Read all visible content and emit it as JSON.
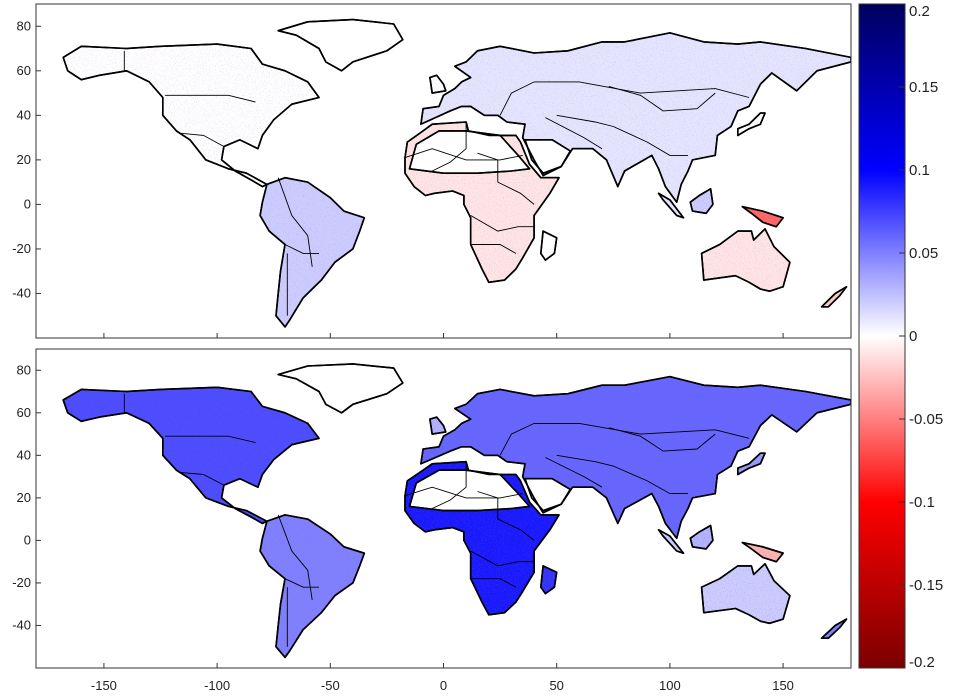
{
  "figure": {
    "panels": [
      {
        "id": "top",
        "land_fill": "#f4eaf0",
        "speckle_bias": 0.0
      },
      {
        "id": "bottom",
        "land_fill": "#9aa6e6",
        "speckle_bias": 0.08
      }
    ],
    "x_axis": {
      "min": -180,
      "max": 180,
      "ticks": [
        -150,
        -100,
        -50,
        0,
        50,
        100,
        150
      ],
      "tick_labels": [
        "-150",
        "-100",
        "-50",
        "0",
        "50",
        "100",
        "150"
      ]
    },
    "y_axis": {
      "min": -60,
      "max": 90,
      "ticks": [
        80,
        60,
        40,
        20,
        0,
        -20,
        -40
      ],
      "tick_labels": [
        "80",
        "60",
        "40",
        "20",
        "0",
        "-20",
        "-40"
      ]
    }
  },
  "colorbar": {
    "min": -0.2,
    "max": 0.2,
    "ticks": [
      0.2,
      0.15,
      0.1,
      0.05,
      0,
      -0.05,
      -0.1,
      -0.15,
      -0.2
    ],
    "tick_labels": [
      "0.2",
      "0.15",
      "0.1",
      "0.05",
      "0",
      "-0.05",
      "-0.1",
      "-0.15",
      "-0.2"
    ],
    "colors": [
      "#7a0000",
      "#ff0000",
      "#ffffff",
      "#0000ff",
      "#00005e"
    ]
  },
  "regions": [
    {
      "name": "north-america",
      "lonlat": [
        [
          -168,
          66
        ],
        [
          -160,
          71
        ],
        [
          -140,
          70
        ],
        [
          -125,
          71
        ],
        [
          -100,
          72
        ],
        [
          -85,
          70
        ],
        [
          -80,
          63
        ],
        [
          -70,
          60
        ],
        [
          -60,
          55
        ],
        [
          -55,
          48
        ],
        [
          -67,
          45
        ],
        [
          -75,
          38
        ],
        [
          -80,
          31
        ],
        [
          -82,
          25
        ],
        [
          -90,
          29
        ],
        [
          -97,
          26
        ],
        [
          -98,
          20
        ],
        [
          -92,
          15
        ],
        [
          -85,
          11
        ],
        [
          -80,
          8
        ],
        [
          -78,
          9
        ],
        [
          -87,
          14
        ],
        [
          -95,
          16
        ],
        [
          -105,
          20
        ],
        [
          -112,
          29
        ],
        [
          -118,
          33
        ],
        [
          -124,
          40
        ],
        [
          -124,
          48
        ],
        [
          -130,
          55
        ],
        [
          -140,
          60
        ],
        [
          -152,
          58
        ],
        [
          -160,
          56
        ],
        [
          -166,
          60
        ]
      ],
      "top": 0.0,
      "bottom": 0.07
    },
    {
      "name": "greenland",
      "lonlat": [
        [
          -73,
          78
        ],
        [
          -60,
          82
        ],
        [
          -40,
          83
        ],
        [
          -22,
          81
        ],
        [
          -18,
          74
        ],
        [
          -25,
          69
        ],
        [
          -40,
          64
        ],
        [
          -45,
          60
        ],
        [
          -52,
          64
        ],
        [
          -55,
          70
        ],
        [
          -65,
          76
        ]
      ],
      "top": null,
      "bottom": null
    },
    {
      "name": "south-america",
      "lonlat": [
        [
          -78,
          9
        ],
        [
          -70,
          12
        ],
        [
          -60,
          10
        ],
        [
          -50,
          3
        ],
        [
          -44,
          -3
        ],
        [
          -35,
          -6
        ],
        [
          -37,
          -12
        ],
        [
          -40,
          -20
        ],
        [
          -48,
          -26
        ],
        [
          -54,
          -34
        ],
        [
          -58,
          -38
        ],
        [
          -62,
          -42
        ],
        [
          -65,
          -47
        ],
        [
          -68,
          -52
        ],
        [
          -70,
          -55
        ],
        [
          -74,
          -50
        ],
        [
          -73,
          -40
        ],
        [
          -72,
          -30
        ],
        [
          -70,
          -18
        ],
        [
          -77,
          -12
        ],
        [
          -81,
          -5
        ],
        [
          -80,
          1
        ]
      ],
      "top": 0.02,
      "bottom": 0.05
    },
    {
      "name": "europe-asia",
      "lonlat": [
        [
          -10,
          36
        ],
        [
          -9,
          43
        ],
        [
          -2,
          44
        ],
        [
          0,
          49
        ],
        [
          5,
          52
        ],
        [
          8,
          55
        ],
        [
          12,
          57
        ],
        [
          5,
          62
        ],
        [
          10,
          64
        ],
        [
          15,
          69
        ],
        [
          25,
          71
        ],
        [
          40,
          68
        ],
        [
          55,
          69
        ],
        [
          70,
          73
        ],
        [
          80,
          73
        ],
        [
          100,
          77
        ],
        [
          115,
          73
        ],
        [
          130,
          72
        ],
        [
          140,
          73
        ],
        [
          160,
          70
        ],
        [
          180,
          66
        ],
        [
          180,
          64
        ],
        [
          165,
          60
        ],
        [
          160,
          55
        ],
        [
          156,
          51
        ],
        [
          145,
          59
        ],
        [
          140,
          54
        ],
        [
          135,
          44
        ],
        [
          130,
          42
        ],
        [
          127,
          35
        ],
        [
          121,
          31
        ],
        [
          120,
          22
        ],
        [
          110,
          20
        ],
        [
          108,
          15
        ],
        [
          105,
          9
        ],
        [
          103,
          1
        ],
        [
          98,
          8
        ],
        [
          95,
          16
        ],
        [
          92,
          22
        ],
        [
          80,
          15
        ],
        [
          77,
          8
        ],
        [
          72,
          20
        ],
        [
          66,
          25
        ],
        [
          57,
          25
        ],
        [
          52,
          17
        ],
        [
          44,
          13
        ],
        [
          40,
          20
        ],
        [
          35,
          30
        ],
        [
          36,
          36
        ],
        [
          28,
          37
        ],
        [
          24,
          40
        ],
        [
          18,
          40
        ],
        [
          12,
          44
        ],
        [
          8,
          44
        ],
        [
          3,
          42
        ]
      ],
      "top": 0.01,
      "bottom": 0.06
    },
    {
      "name": "africa",
      "lonlat": [
        [
          -17,
          21
        ],
        [
          -16,
          28
        ],
        [
          -9,
          33
        ],
        [
          -5,
          36
        ],
        [
          10,
          37
        ],
        [
          11,
          33
        ],
        [
          20,
          31
        ],
        [
          32,
          31
        ],
        [
          34,
          28
        ],
        [
          38,
          18
        ],
        [
          43,
          12
        ],
        [
          51,
          12
        ],
        [
          47,
          5
        ],
        [
          40,
          -5
        ],
        [
          40,
          -15
        ],
        [
          35,
          -24
        ],
        [
          32,
          -29
        ],
        [
          27,
          -34
        ],
        [
          20,
          -35
        ],
        [
          17,
          -29
        ],
        [
          12,
          -18
        ],
        [
          12,
          -6
        ],
        [
          9,
          0
        ],
        [
          9,
          4
        ],
        [
          4,
          6
        ],
        [
          -4,
          5
        ],
        [
          -8,
          4
        ],
        [
          -13,
          8
        ],
        [
          -17,
          14
        ]
      ],
      "top": -0.01,
      "bottom": 0.09
    },
    {
      "name": "madagascar",
      "lonlat": [
        [
          44,
          -12
        ],
        [
          50,
          -15
        ],
        [
          49,
          -22
        ],
        [
          45,
          -25
        ],
        [
          43,
          -22
        ]
      ],
      "top": null,
      "bottom": 0.08
    },
    {
      "name": "australia",
      "lonlat": [
        [
          114,
          -22
        ],
        [
          122,
          -18
        ],
        [
          130,
          -12
        ],
        [
          136,
          -12
        ],
        [
          137,
          -16
        ],
        [
          142,
          -11
        ],
        [
          146,
          -19
        ],
        [
          153,
          -26
        ],
        [
          150,
          -37
        ],
        [
          144,
          -39
        ],
        [
          140,
          -38
        ],
        [
          135,
          -35
        ],
        [
          129,
          -32
        ],
        [
          115,
          -34
        ]
      ],
      "top": -0.01,
      "bottom": 0.02
    },
    {
      "name": "uk",
      "lonlat": [
        [
          -5,
          50
        ],
        [
          1,
          51
        ],
        [
          0,
          54
        ],
        [
          -3,
          58
        ],
        [
          -6,
          57
        ]
      ],
      "top": 0.0,
      "bottom": 0.03
    },
    {
      "name": "japan",
      "lonlat": [
        [
          130,
          31
        ],
        [
          135,
          34
        ],
        [
          140,
          36
        ],
        [
          142,
          41
        ],
        [
          140,
          41
        ],
        [
          135,
          36
        ],
        [
          130,
          34
        ]
      ],
      "top": 0.0,
      "bottom": 0.04
    },
    {
      "name": "new-guinea",
      "lonlat": [
        [
          132,
          -1
        ],
        [
          141,
          -3
        ],
        [
          150,
          -6
        ],
        [
          147,
          -10
        ],
        [
          141,
          -8
        ],
        [
          136,
          -4
        ]
      ],
      "top": -0.06,
      "bottom": -0.03
    },
    {
      "name": "borneo",
      "lonlat": [
        [
          109,
          1
        ],
        [
          113,
          4
        ],
        [
          118,
          7
        ],
        [
          119,
          0
        ],
        [
          116,
          -4
        ],
        [
          110,
          -3
        ]
      ],
      "top": 0.02,
      "bottom": 0.03
    },
    {
      "name": "sumatra",
      "lonlat": [
        [
          95,
          5
        ],
        [
          100,
          2
        ],
        [
          106,
          -6
        ],
        [
          103,
          -5
        ],
        [
          97,
          2
        ]
      ],
      "top": 0.01,
      "bottom": 0.02
    },
    {
      "name": "new-zealand",
      "lonlat": [
        [
          167,
          -46
        ],
        [
          173,
          -40
        ],
        [
          178,
          -37
        ],
        [
          175,
          -41
        ],
        [
          170,
          -46
        ]
      ],
      "top": -0.02,
      "bottom": 0.05
    },
    {
      "name": "sahara-blank",
      "lonlat": [
        [
          -15,
          16
        ],
        [
          -12,
          27
        ],
        [
          -2,
          33
        ],
        [
          10,
          33
        ],
        [
          25,
          31
        ],
        [
          33,
          22
        ],
        [
          38,
          16
        ],
        [
          30,
          15
        ],
        [
          15,
          14
        ],
        [
          0,
          14
        ]
      ],
      "top": null,
      "bottom": null
    },
    {
      "name": "arabia-blank",
      "lonlat": [
        [
          36,
          29
        ],
        [
          48,
          29
        ],
        [
          56,
          24
        ],
        [
          52,
          17
        ],
        [
          44,
          14
        ],
        [
          39,
          20
        ]
      ],
      "top": null,
      "bottom": null
    }
  ],
  "border_lines": [
    [
      [
        -141,
        69
      ],
      [
        -141,
        60
      ]
    ],
    [
      [
        -123,
        49
      ],
      [
        -95,
        49
      ],
      [
        -83,
        46
      ]
    ],
    [
      [
        -117,
        32
      ],
      [
        -106,
        31
      ],
      [
        -97,
        26
      ]
    ],
    [
      [
        -73,
        12
      ],
      [
        -67,
        -5
      ],
      [
        -60,
        -14
      ],
      [
        -58,
        -28
      ]
    ],
    [
      [
        -70,
        -18
      ],
      [
        -62,
        -22
      ],
      [
        -55,
        -22
      ]
    ],
    [
      [
        -69,
        -22
      ],
      [
        -69,
        -50
      ]
    ],
    [
      [
        -17,
        21
      ],
      [
        -5,
        25
      ],
      [
        10,
        20
      ],
      [
        25,
        20
      ],
      [
        35,
        22
      ]
    ],
    [
      [
        10,
        37
      ],
      [
        10,
        25
      ],
      [
        3,
        19
      ],
      [
        -5,
        15
      ]
    ],
    [
      [
        15,
        23
      ],
      [
        24,
        20
      ],
      [
        24,
        10
      ],
      [
        34,
        5
      ],
      [
        40,
        0
      ]
    ],
    [
      [
        12,
        -5
      ],
      [
        24,
        -12
      ],
      [
        33,
        -10
      ],
      [
        40,
        -10
      ]
    ],
    [
      [
        12,
        -18
      ],
      [
        25,
        -18
      ],
      [
        32,
        -22
      ]
    ],
    [
      [
        25,
        40
      ],
      [
        30,
        50
      ],
      [
        40,
        55
      ],
      [
        60,
        55
      ],
      [
        87,
        50
      ],
      [
        120,
        52
      ],
      [
        135,
        48
      ]
    ],
    [
      [
        50,
        40
      ],
      [
        67,
        37
      ],
      [
        75,
        35
      ],
      [
        90,
        28
      ],
      [
        100,
        22
      ],
      [
        108,
        22
      ]
    ],
    [
      [
        45,
        39
      ],
      [
        62,
        30
      ],
      [
        70,
        25
      ]
    ],
    [
      [
        73,
        53
      ],
      [
        87,
        49
      ],
      [
        97,
        42
      ],
      [
        112,
        43
      ],
      [
        120,
        50
      ]
    ]
  ]
}
